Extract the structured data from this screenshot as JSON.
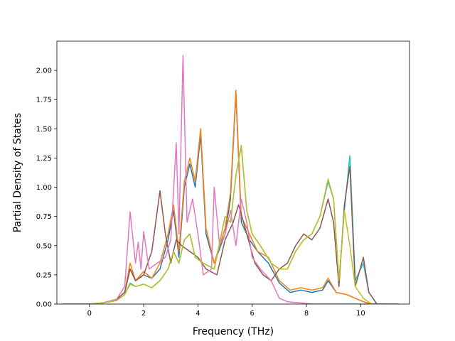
{
  "chart_data": {
    "type": "line",
    "title": "",
    "xlabel": "Frequency (THz)",
    "ylabel": "Partial Density of States",
    "xlim": [
      -1.2,
      11.8
    ],
    "ylim": [
      0,
      2.25
    ],
    "xticks": [
      "0",
      "2",
      "4",
      "6",
      "8",
      "10"
    ],
    "yticks": [
      "0.00",
      "0.25",
      "0.50",
      "0.75",
      "1.00",
      "1.25",
      "1.50",
      "1.75",
      "2.00"
    ],
    "grid": false,
    "legend": "none",
    "series": [
      {
        "color": "#1f77b4",
        "points": [
          [
            -1.0,
            0
          ],
          [
            0,
            0
          ],
          [
            0.5,
            0.01
          ],
          [
            1.0,
            0.04
          ],
          [
            1.3,
            0.1
          ],
          [
            1.5,
            0.3
          ],
          [
            1.7,
            0.2
          ],
          [
            2.0,
            0.25
          ],
          [
            2.3,
            0.22
          ],
          [
            2.6,
            0.3
          ],
          [
            2.9,
            0.55
          ],
          [
            3.1,
            0.8
          ],
          [
            3.3,
            0.4
          ],
          [
            3.5,
            1.0
          ],
          [
            3.7,
            1.2
          ],
          [
            3.9,
            1.0
          ],
          [
            4.1,
            1.45
          ],
          [
            4.3,
            0.6
          ],
          [
            4.6,
            0.35
          ],
          [
            5.0,
            0.6
          ],
          [
            5.2,
            0.9
          ],
          [
            5.4,
            1.8
          ],
          [
            5.6,
            0.7
          ],
          [
            5.9,
            0.55
          ],
          [
            6.2,
            0.45
          ],
          [
            6.6,
            0.35
          ],
          [
            7.0,
            0.18
          ],
          [
            7.4,
            0.1
          ],
          [
            7.8,
            0.12
          ],
          [
            8.2,
            0.1
          ],
          [
            8.6,
            0.12
          ],
          [
            8.8,
            0.2
          ],
          [
            9.1,
            0.1
          ],
          [
            9.5,
            0.08
          ],
          [
            9.8,
            0.05
          ],
          [
            10.1,
            0.02
          ],
          [
            10.4,
            0
          ],
          [
            11.4,
            0
          ]
        ]
      },
      {
        "color": "#ff7f0e",
        "points": [
          [
            -1.0,
            0
          ],
          [
            0,
            0
          ],
          [
            0.5,
            0.01
          ],
          [
            1.0,
            0.04
          ],
          [
            1.3,
            0.1
          ],
          [
            1.5,
            0.35
          ],
          [
            1.7,
            0.2
          ],
          [
            2.0,
            0.28
          ],
          [
            2.3,
            0.22
          ],
          [
            2.6,
            0.35
          ],
          [
            2.9,
            0.6
          ],
          [
            3.1,
            0.85
          ],
          [
            3.3,
            0.45
          ],
          [
            3.5,
            1.05
          ],
          [
            3.7,
            1.25
          ],
          [
            3.9,
            1.05
          ],
          [
            4.1,
            1.5
          ],
          [
            4.3,
            0.65
          ],
          [
            4.6,
            0.35
          ],
          [
            5.0,
            0.65
          ],
          [
            5.2,
            0.95
          ],
          [
            5.4,
            1.83
          ],
          [
            5.6,
            0.75
          ],
          [
            5.9,
            0.6
          ],
          [
            6.2,
            0.45
          ],
          [
            6.6,
            0.4
          ],
          [
            7.0,
            0.2
          ],
          [
            7.4,
            0.12
          ],
          [
            7.8,
            0.14
          ],
          [
            8.2,
            0.12
          ],
          [
            8.6,
            0.14
          ],
          [
            8.8,
            0.22
          ],
          [
            9.1,
            0.1
          ],
          [
            9.5,
            0.08
          ],
          [
            9.8,
            0.05
          ],
          [
            10.1,
            0.02
          ],
          [
            10.4,
            0
          ],
          [
            11.4,
            0
          ]
        ]
      },
      {
        "color": "#17becf",
        "points": [
          [
            -1.0,
            0
          ],
          [
            0,
            0
          ],
          [
            0.5,
            0.01
          ],
          [
            1.0,
            0.03
          ],
          [
            1.3,
            0.08
          ],
          [
            1.5,
            0.18
          ],
          [
            1.7,
            0.15
          ],
          [
            2.0,
            0.17
          ],
          [
            2.3,
            0.14
          ],
          [
            2.6,
            0.2
          ],
          [
            2.9,
            0.3
          ],
          [
            3.1,
            0.45
          ],
          [
            3.3,
            0.35
          ],
          [
            3.5,
            0.55
          ],
          [
            3.7,
            0.6
          ],
          [
            3.9,
            0.4
          ],
          [
            4.2,
            0.35
          ],
          [
            4.6,
            0.3
          ],
          [
            5.0,
            0.75
          ],
          [
            5.2,
            0.7
          ],
          [
            5.4,
            1.1
          ],
          [
            5.6,
            1.35
          ],
          [
            5.8,
            0.8
          ],
          [
            6.0,
            0.6
          ],
          [
            6.3,
            0.5
          ],
          [
            6.7,
            0.35
          ],
          [
            7.0,
            0.3
          ],
          [
            7.3,
            0.3
          ],
          [
            7.6,
            0.45
          ],
          [
            7.9,
            0.55
          ],
          [
            8.2,
            0.6
          ],
          [
            8.5,
            0.75
          ],
          [
            8.8,
            1.05
          ],
          [
            9.0,
            0.9
          ],
          [
            9.2,
            0.2
          ],
          [
            9.4,
            0.8
          ],
          [
            9.6,
            1.27
          ],
          [
            9.8,
            0.2
          ],
          [
            10.1,
            0.35
          ],
          [
            10.3,
            0.1
          ],
          [
            10.6,
            0
          ],
          [
            11.4,
            0
          ]
        ]
      },
      {
        "color": "#8c564b",
        "points": [
          [
            -1.0,
            0
          ],
          [
            0,
            0
          ],
          [
            0.5,
            0.01
          ],
          [
            1.0,
            0.04
          ],
          [
            1.3,
            0.1
          ],
          [
            1.5,
            0.3
          ],
          [
            1.7,
            0.2
          ],
          [
            2.0,
            0.25
          ],
          [
            2.3,
            0.45
          ],
          [
            2.6,
            0.97
          ],
          [
            2.8,
            0.6
          ],
          [
            3.0,
            0.35
          ],
          [
            3.2,
            0.55
          ],
          [
            3.4,
            0.5
          ],
          [
            3.7,
            0.45
          ],
          [
            4.0,
            0.4
          ],
          [
            4.3,
            0.3
          ],
          [
            4.7,
            0.25
          ],
          [
            5.0,
            0.55
          ],
          [
            5.3,
            0.7
          ],
          [
            5.5,
            0.85
          ],
          [
            5.8,
            0.6
          ],
          [
            6.1,
            0.35
          ],
          [
            6.4,
            0.25
          ],
          [
            6.7,
            0.2
          ],
          [
            7.0,
            0.3
          ],
          [
            7.3,
            0.35
          ],
          [
            7.6,
            0.5
          ],
          [
            7.9,
            0.6
          ],
          [
            8.2,
            0.55
          ],
          [
            8.5,
            0.65
          ],
          [
            8.8,
            0.9
          ],
          [
            9.0,
            0.7
          ],
          [
            9.2,
            0.15
          ],
          [
            9.4,
            0.85
          ],
          [
            9.6,
            1.18
          ],
          [
            9.8,
            0.15
          ],
          [
            10.1,
            0.4
          ],
          [
            10.3,
            0.1
          ],
          [
            10.6,
            0
          ],
          [
            11.4,
            0
          ]
        ]
      },
      {
        "color": "#e377c2",
        "points": [
          [
            -1.0,
            0
          ],
          [
            0,
            0
          ],
          [
            0.5,
            0.01
          ],
          [
            1.0,
            0.04
          ],
          [
            1.3,
            0.15
          ],
          [
            1.5,
            0.79
          ],
          [
            1.7,
            0.35
          ],
          [
            1.8,
            0.53
          ],
          [
            1.9,
            0.3
          ],
          [
            2.0,
            0.62
          ],
          [
            2.2,
            0.3
          ],
          [
            2.5,
            0.35
          ],
          [
            2.8,
            0.4
          ],
          [
            3.0,
            0.55
          ],
          [
            3.2,
            1.38
          ],
          [
            3.3,
            0.6
          ],
          [
            3.45,
            2.13
          ],
          [
            3.6,
            0.7
          ],
          [
            3.8,
            0.9
          ],
          [
            4.0,
            0.6
          ],
          [
            4.2,
            0.25
          ],
          [
            4.5,
            0.3
          ],
          [
            4.6,
            1.0
          ],
          [
            4.8,
            0.5
          ],
          [
            5.0,
            0.6
          ],
          [
            5.2,
            0.8
          ],
          [
            5.4,
            0.5
          ],
          [
            5.6,
            0.9
          ],
          [
            5.8,
            0.7
          ],
          [
            6.0,
            0.4
          ],
          [
            6.3,
            0.3
          ],
          [
            6.7,
            0.2
          ],
          [
            7.0,
            0.05
          ],
          [
            7.3,
            0.02
          ],
          [
            7.8,
            0.01
          ],
          [
            8.2,
            0
          ],
          [
            11.4,
            0
          ]
        ]
      },
      {
        "color": "#bcbd22",
        "points": [
          [
            -1.0,
            0
          ],
          [
            0,
            0
          ],
          [
            0.5,
            0.01
          ],
          [
            1.0,
            0.03
          ],
          [
            1.3,
            0.08
          ],
          [
            1.5,
            0.17
          ],
          [
            1.7,
            0.15
          ],
          [
            2.0,
            0.17
          ],
          [
            2.3,
            0.14
          ],
          [
            2.6,
            0.2
          ],
          [
            2.9,
            0.3
          ],
          [
            3.1,
            0.45
          ],
          [
            3.3,
            0.35
          ],
          [
            3.5,
            0.55
          ],
          [
            3.7,
            0.6
          ],
          [
            3.9,
            0.4
          ],
          [
            4.2,
            0.35
          ],
          [
            4.6,
            0.3
          ],
          [
            5.0,
            0.75
          ],
          [
            5.2,
            0.7
          ],
          [
            5.4,
            1.1
          ],
          [
            5.6,
            1.36
          ],
          [
            5.8,
            0.8
          ],
          [
            6.0,
            0.6
          ],
          [
            6.3,
            0.5
          ],
          [
            6.7,
            0.35
          ],
          [
            7.0,
            0.3
          ],
          [
            7.3,
            0.3
          ],
          [
            7.6,
            0.45
          ],
          [
            7.9,
            0.55
          ],
          [
            8.2,
            0.6
          ],
          [
            8.5,
            0.75
          ],
          [
            8.8,
            1.07
          ],
          [
            9.0,
            0.9
          ],
          [
            9.2,
            0.2
          ],
          [
            9.4,
            0.8
          ],
          [
            9.6,
            0.5
          ],
          [
            9.8,
            0.15
          ],
          [
            10.1,
            0.05
          ],
          [
            10.4,
            0
          ],
          [
            11.4,
            0
          ]
        ]
      }
    ]
  }
}
